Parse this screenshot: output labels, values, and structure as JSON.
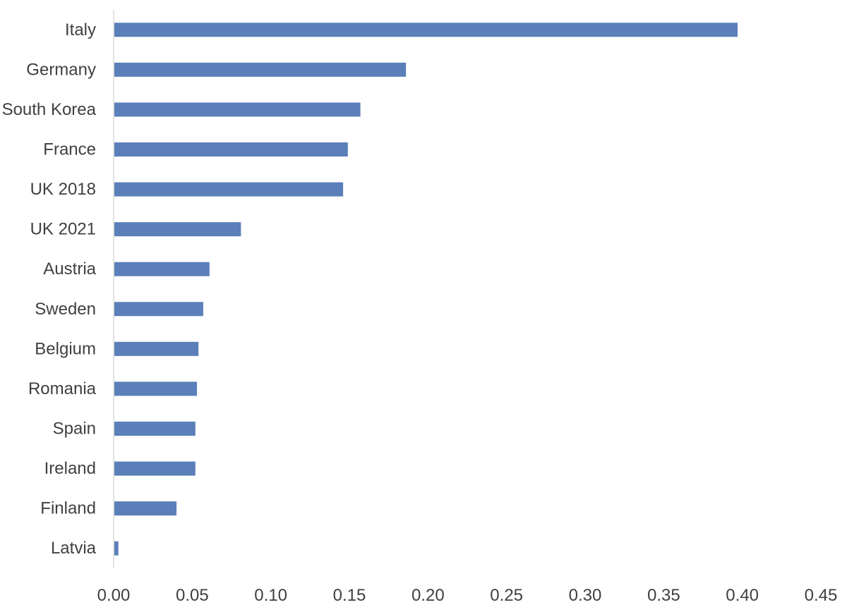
{
  "chart_data": {
    "type": "bar",
    "orientation": "horizontal",
    "title": "",
    "xlabel": "",
    "ylabel": "",
    "categories": [
      "Italy",
      "Germany",
      "South Korea",
      "France",
      "UK 2018",
      "UK 2021",
      "Austria",
      "Sweden",
      "Belgium",
      "Romania",
      "Spain",
      "Ireland",
      "Finland",
      "Latvia"
    ],
    "values": [
      0.397,
      0.186,
      0.157,
      0.149,
      0.146,
      0.081,
      0.061,
      0.057,
      0.054,
      0.053,
      0.052,
      0.052,
      0.04,
      0.003
    ],
    "xlim": [
      0,
      0.45
    ],
    "xticks": [
      "0.00",
      "0.05",
      "0.10",
      "0.15",
      "0.20",
      "0.25",
      "0.30",
      "0.35",
      "0.40",
      "0.45"
    ],
    "grid": false,
    "legend": "none",
    "bar_color": "#5a7fb9",
    "axis_color": "#d9d9d9"
  }
}
